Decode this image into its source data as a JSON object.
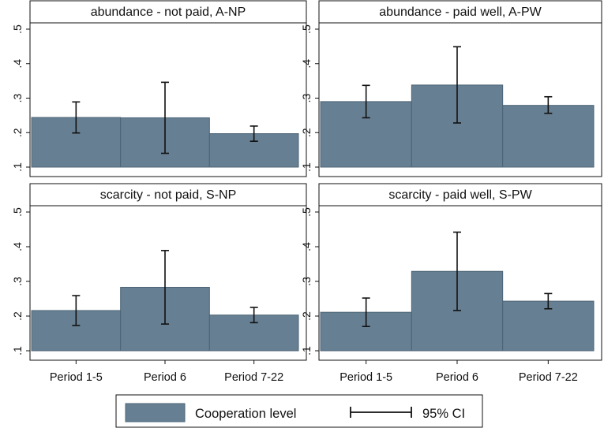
{
  "chart_data": {
    "type": "bar",
    "layout": "2x2 facets",
    "categories": [
      "Period 1-5",
      "Period 6",
      "Period 7-22"
    ],
    "ylim": [
      0.1,
      0.5
    ],
    "yticks": [
      0.1,
      0.2,
      0.3,
      0.4,
      0.5
    ],
    "ytick_labels": [
      ".1",
      ".2",
      ".3",
      ".4",
      ".5"
    ],
    "grid": false,
    "panels": [
      {
        "title": "abundance - not paid, A-NP",
        "values": [
          0.244,
          0.243,
          0.197
        ],
        "ci_low": [
          0.199,
          0.14,
          0.175
        ],
        "ci_high": [
          0.289,
          0.346,
          0.219
        ]
      },
      {
        "title": "abundance - paid well, A-PW",
        "values": [
          0.29,
          0.338,
          0.279
        ],
        "ci_low": [
          0.243,
          0.228,
          0.256
        ],
        "ci_high": [
          0.337,
          0.449,
          0.304
        ]
      },
      {
        "title": "scarcity - not paid, S-NP",
        "values": [
          0.216,
          0.283,
          0.203
        ],
        "ci_low": [
          0.173,
          0.177,
          0.181
        ],
        "ci_high": [
          0.259,
          0.389,
          0.225
        ]
      },
      {
        "title": "scarcity - paid well, S-PW",
        "values": [
          0.211,
          0.329,
          0.243
        ],
        "ci_low": [
          0.17,
          0.216,
          0.221
        ],
        "ci_high": [
          0.252,
          0.442,
          0.265
        ]
      }
    ],
    "legend": {
      "position": "bottom",
      "items": [
        {
          "kind": "bar",
          "label": "Cooperation level"
        },
        {
          "kind": "errorbar",
          "label": "95% CI"
        }
      ]
    },
    "colors": {
      "bar_fill": "#667f92",
      "bar_stroke": "#4d6475",
      "errorbar": "#111111",
      "panel_header": "#ffffff",
      "axis": "#111111"
    }
  }
}
